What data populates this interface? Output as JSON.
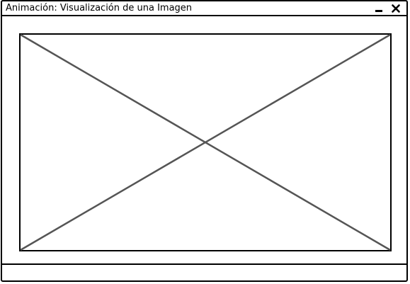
{
  "window": {
    "title": "Animación: Visualización de una Imagen",
    "controls": {
      "minimize_icon": "minimize-icon",
      "close_icon": "close-icon"
    }
  },
  "main": {
    "image": {
      "type": "image-placeholder",
      "icon": "crossed-box"
    }
  },
  "statusbar": {
    "text": ""
  },
  "colors": {
    "border": "#000000",
    "placeholder_lines": "#555555",
    "background": "#ffffff"
  }
}
